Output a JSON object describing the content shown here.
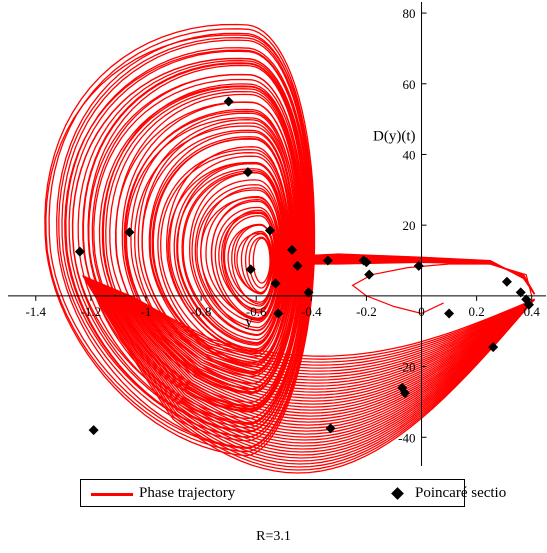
{
  "chart_data": {
    "type": "line",
    "title": "",
    "xlabel": "y",
    "ylabel": "D(y)(t)",
    "xlim": [
      -1.45,
      0.43
    ],
    "ylim": [
      -47,
      82
    ],
    "x_ticks": [
      -1.4,
      -1.2,
      -1,
      -0.8,
      -0.6,
      -0.4,
      -0.2,
      0,
      0.2,
      0.4
    ],
    "x_tick_labels": [
      "-1.4",
      "-1.2",
      "-1",
      "-0.8",
      "-0.6",
      "-0.4",
      "-0.2",
      "0",
      "0.2",
      "0.4"
    ],
    "y_ticks": [
      -40,
      -20,
      20,
      40,
      60,
      80
    ],
    "y_tick_labels": [
      "-40",
      "-20",
      "20",
      "40",
      "60",
      "80"
    ],
    "grid": false,
    "legend_position": "bottom",
    "colors": {
      "trajectory": "#ff0000",
      "section": "#000000"
    },
    "series": [
      {
        "name": "Phase trajectory",
        "style": "line",
        "description_points": "chaotic double-scroll attractor",
        "sample_x": [
          0.08,
          0.0,
          -0.1,
          -0.2,
          -0.25,
          -0.18,
          -0.05,
          0.1,
          0.25,
          0.38,
          0.4
        ],
        "sample_y": [
          -2,
          -5,
          -3,
          0,
          3,
          6,
          8,
          9,
          9,
          6,
          0
        ]
      },
      {
        "name": "Poincaré sectio",
        "style": "diamond",
        "x": [
          -0.7,
          -0.63,
          -1.24,
          -1.06,
          -0.55,
          -0.47,
          -0.45,
          -0.62,
          -0.53,
          -0.41,
          -0.52,
          -0.34,
          -0.21,
          -0.2,
          -0.19,
          -0.01,
          0.1,
          0.31,
          0.36,
          0.38,
          0.39,
          0.26,
          -0.07,
          -0.06,
          -0.33,
          -1.19
        ],
        "y": [
          55,
          35,
          12.5,
          18,
          18.5,
          13,
          8.5,
          7.5,
          3.5,
          1,
          -5,
          10,
          10,
          9.5,
          6,
          8.5,
          -5,
          4,
          1,
          -1,
          -2.5,
          -14.5,
          -26,
          -27.5,
          -37.5,
          -38
        ]
      }
    ]
  },
  "legend": {
    "items": [
      {
        "label": "Phase trajectory",
        "color": "#ff0000",
        "marker": "line"
      },
      {
        "label": "Poincaré sectio",
        "color": "#000000",
        "marker": "diamond"
      }
    ]
  },
  "caption": "R=3.1"
}
